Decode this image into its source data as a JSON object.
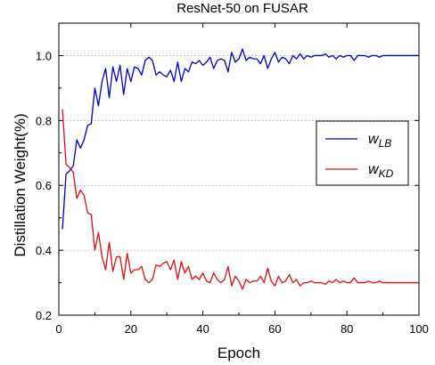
{
  "chart_data": {
    "type": "line",
    "title": "ResNet-50 on FUSAR",
    "xlabel": "Epoch",
    "ylabel": "Distillation Weight(%)",
    "xlim": [
      0,
      100
    ],
    "ylim": [
      0.2,
      1.1
    ],
    "xticks": [
      0,
      20,
      40,
      60,
      80,
      100
    ],
    "yticks": [
      0.2,
      0.4,
      0.6,
      0.8,
      1.0
    ],
    "xtick_labels": [
      "0",
      "20",
      "40",
      "60",
      "80",
      "100"
    ],
    "ytick_labels": [
      "0.2",
      "0.4",
      "0.6",
      "0.8",
      "1.0"
    ],
    "grid": "horizontal dotted",
    "legend_position": "right-middle",
    "series": [
      {
        "name_main": "w",
        "name_sub": "LB",
        "color": "#0000cc",
        "x": [
          1,
          2,
          3,
          4,
          5,
          6,
          7,
          8,
          9,
          10,
          11,
          12,
          13,
          14,
          15,
          16,
          17,
          18,
          19,
          20,
          21,
          22,
          23,
          24,
          25,
          26,
          27,
          28,
          29,
          30,
          31,
          32,
          33,
          34,
          35,
          36,
          37,
          38,
          39,
          40,
          41,
          42,
          43,
          44,
          45,
          46,
          47,
          48,
          49,
          50,
          51,
          52,
          53,
          54,
          55,
          56,
          57,
          58,
          59,
          60,
          61,
          62,
          63,
          64,
          65,
          66,
          67,
          68,
          69,
          70,
          71,
          72,
          73,
          74,
          75,
          76,
          77,
          78,
          79,
          80,
          81,
          82,
          83,
          84,
          85,
          86,
          87,
          88,
          89,
          90,
          91,
          92,
          93,
          94,
          95,
          96,
          97,
          98,
          99,
          100
        ],
        "values": [
          0.465,
          0.635,
          0.645,
          0.66,
          0.74,
          0.715,
          0.74,
          0.785,
          0.79,
          0.9,
          0.845,
          0.92,
          0.96,
          0.87,
          0.965,
          0.92,
          0.97,
          0.88,
          0.96,
          0.92,
          0.965,
          0.96,
          0.94,
          0.985,
          0.995,
          0.985,
          0.94,
          0.95,
          0.94,
          0.935,
          0.955,
          0.92,
          0.98,
          0.92,
          0.96,
          0.95,
          0.98,
          0.975,
          0.985,
          0.97,
          0.98,
          0.995,
          0.96,
          0.985,
          0.99,
          0.985,
          0.95,
          1.01,
          0.98,
          0.99,
          1.02,
          0.985,
          0.995,
          0.99,
          0.99,
          0.975,
          1.0,
          0.96,
          0.99,
          1.01,
          0.98,
          0.995,
          0.99,
          0.975,
          1.0,
          0.99,
          1.005,
          0.99,
          1.0,
          0.995,
          1.0,
          1.0,
          1.0,
          1.005,
          0.995,
          1.0,
          0.99,
          1.0,
          0.995,
          1.0,
          1.0,
          0.985,
          1.0,
          1.0,
          1.0,
          0.995,
          1.0,
          1.0,
          0.995,
          1.0,
          1.0,
          1.0,
          1.0,
          1.0,
          1.0,
          1.0,
          1.0,
          1.0,
          1.0,
          1.0
        ]
      },
      {
        "name_main": "w",
        "name_sub": "KD",
        "color": "#dd1111",
        "x": [
          1,
          2,
          3,
          4,
          5,
          6,
          7,
          8,
          9,
          10,
          11,
          12,
          13,
          14,
          15,
          16,
          17,
          18,
          19,
          20,
          21,
          22,
          23,
          24,
          25,
          26,
          27,
          28,
          29,
          30,
          31,
          32,
          33,
          34,
          35,
          36,
          37,
          38,
          39,
          40,
          41,
          42,
          43,
          44,
          45,
          46,
          47,
          48,
          49,
          50,
          51,
          52,
          53,
          54,
          55,
          56,
          57,
          58,
          59,
          60,
          61,
          62,
          63,
          64,
          65,
          66,
          67,
          68,
          69,
          70,
          71,
          72,
          73,
          74,
          75,
          76,
          77,
          78,
          79,
          80,
          81,
          82,
          83,
          84,
          85,
          86,
          87,
          88,
          89,
          90,
          91,
          92,
          93,
          94,
          95,
          96,
          97,
          98,
          99,
          100
        ],
        "values": [
          0.835,
          0.665,
          0.655,
          0.64,
          0.56,
          0.585,
          0.57,
          0.515,
          0.51,
          0.4,
          0.455,
          0.38,
          0.34,
          0.425,
          0.335,
          0.38,
          0.38,
          0.31,
          0.39,
          0.33,
          0.34,
          0.34,
          0.35,
          0.31,
          0.3,
          0.31,
          0.355,
          0.35,
          0.36,
          0.365,
          0.34,
          0.37,
          0.31,
          0.365,
          0.33,
          0.35,
          0.31,
          0.32,
          0.31,
          0.33,
          0.305,
          0.3,
          0.33,
          0.31,
          0.3,
          0.31,
          0.35,
          0.29,
          0.32,
          0.305,
          0.28,
          0.31,
          0.3,
          0.305,
          0.305,
          0.32,
          0.3,
          0.345,
          0.305,
          0.29,
          0.32,
          0.3,
          0.305,
          0.325,
          0.3,
          0.31,
          0.29,
          0.3,
          0.3,
          0.305,
          0.3,
          0.3,
          0.3,
          0.295,
          0.305,
          0.3,
          0.31,
          0.3,
          0.305,
          0.3,
          0.3,
          0.315,
          0.3,
          0.3,
          0.3,
          0.305,
          0.3,
          0.3,
          0.305,
          0.3,
          0.3,
          0.3,
          0.3,
          0.3,
          0.3,
          0.3,
          0.3,
          0.3,
          0.3,
          0.3
        ]
      }
    ]
  }
}
